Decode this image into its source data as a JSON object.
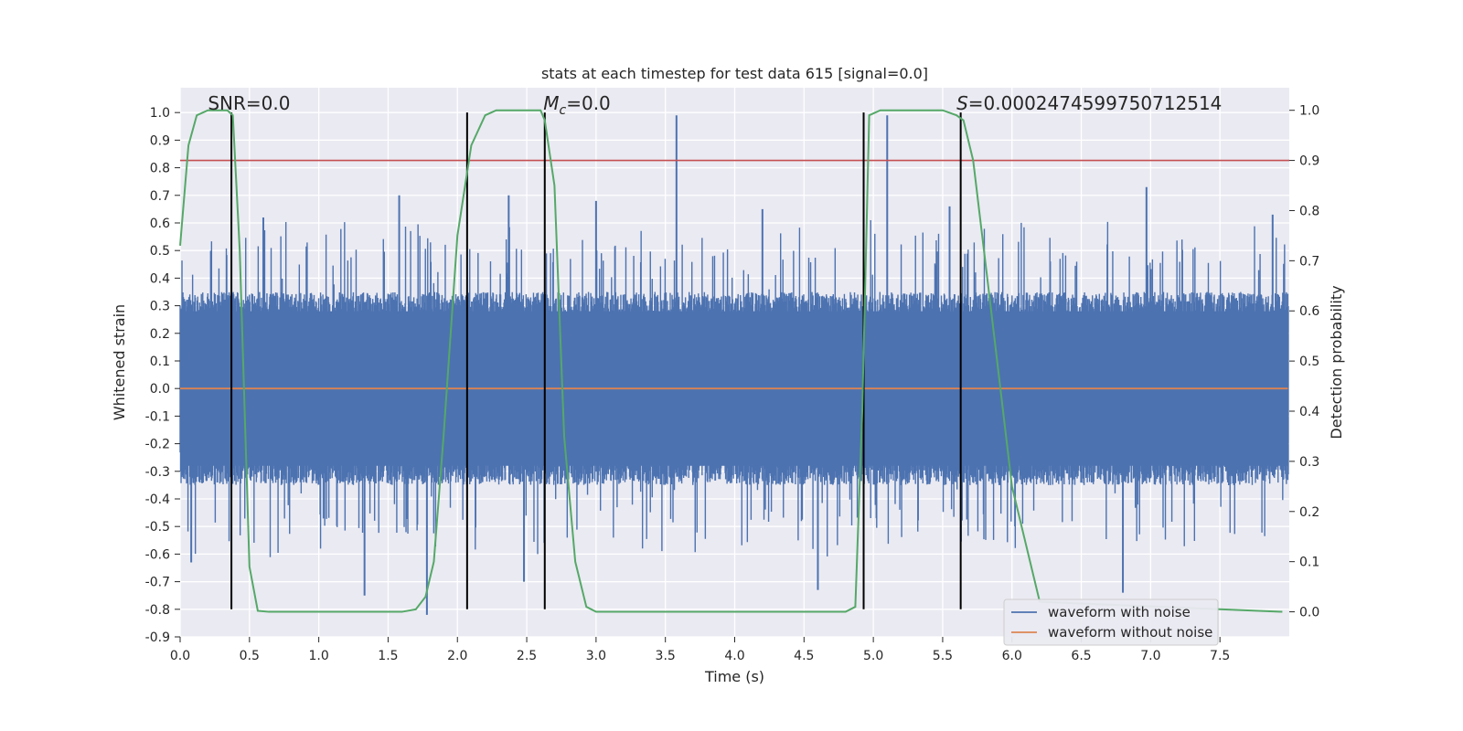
{
  "chart_data": {
    "type": "line",
    "title": "stats at each timestep for test data 615 [signal=0.0]",
    "xlabel": "Time (s)",
    "ylabel": "Whitened strain",
    "y2label": "Detection probability",
    "xlim": [
      0.0,
      8.0
    ],
    "ylim": [
      -0.9,
      1.09
    ],
    "y2lim": [
      -0.05,
      1.045
    ],
    "xticks": [
      0.0,
      0.5,
      1.0,
      1.5,
      2.0,
      2.5,
      3.0,
      3.5,
      4.0,
      4.5,
      5.0,
      5.5,
      6.0,
      6.5,
      7.0,
      7.5
    ],
    "xtick_labels": [
      "0.0",
      "0.5",
      "1.0",
      "1.5",
      "2.0",
      "2.5",
      "3.0",
      "3.5",
      "4.0",
      "4.5",
      "5.0",
      "5.5",
      "6.0",
      "6.5",
      "7.0",
      "7.5"
    ],
    "yticks": [
      -0.9,
      -0.8,
      -0.7,
      -0.6,
      -0.5,
      -0.4,
      -0.3,
      -0.2,
      -0.1,
      0.0,
      0.1,
      0.2,
      0.3,
      0.4,
      0.5,
      0.6,
      0.7,
      0.8,
      0.9,
      1.0
    ],
    "ytick_labels": [
      "-0.9",
      "-0.8",
      "-0.7",
      "-0.6",
      "-0.5",
      "-0.4",
      "-0.3",
      "-0.2",
      "-0.1",
      "0.0",
      "0.1",
      "0.2",
      "0.3",
      "0.4",
      "0.5",
      "0.6",
      "0.7",
      "0.8",
      "0.9",
      "1.0"
    ],
    "y2ticks": [
      0.0,
      0.1,
      0.2,
      0.3,
      0.4,
      0.5,
      0.6,
      0.7,
      0.8,
      0.9,
      1.0
    ],
    "y2tick_labels": [
      "0.0",
      "0.1",
      "0.2",
      "0.3",
      "0.4",
      "0.5",
      "0.6",
      "0.7",
      "0.8",
      "0.9",
      "1.0"
    ],
    "annotations": [
      {
        "text": "SNR=0.0",
        "x": 0.2,
        "y": 1.01
      },
      {
        "text": "M",
        "sub": "c",
        "suffix": "=0.0",
        "x": 2.62,
        "y": 1.01
      },
      {
        "text": "S",
        "suffix": "=0.0002474599750712514",
        "x": 5.6,
        "y": 1.01
      }
    ],
    "series": [
      {
        "name": "waveform with noise",
        "color": "#4c72b0",
        "kind": "noise",
        "envelope": 0.35,
        "peaks": [
          [
            0.42,
            0.32
          ],
          [
            0.6,
            0.62
          ],
          [
            1.58,
            0.7
          ],
          [
            1.78,
            -0.82
          ],
          [
            2.37,
            0.7
          ],
          [
            3.0,
            0.68
          ],
          [
            3.58,
            0.99
          ],
          [
            4.2,
            0.65
          ],
          [
            4.6,
            -0.73
          ],
          [
            5.1,
            0.99
          ],
          [
            5.55,
            0.66
          ],
          [
            6.8,
            -0.74
          ],
          [
            6.97,
            0.73
          ],
          [
            7.88,
            0.63
          ],
          [
            1.33,
            -0.75
          ],
          [
            2.48,
            -0.7
          ],
          [
            0.08,
            -0.63
          ]
        ]
      },
      {
        "name": "waveform without noise",
        "color": "#dd8452",
        "kind": "line",
        "x": [
          0.0,
          8.0
        ],
        "values": [
          0.0,
          0.0
        ]
      },
      {
        "name": "Detection probability",
        "color": "#55a868",
        "axis": "right",
        "x": [
          0.0,
          0.06,
          0.12,
          0.2,
          0.28,
          0.34,
          0.38,
          0.43,
          0.5,
          0.56,
          0.64,
          1.6,
          1.7,
          1.77,
          1.83,
          1.9,
          2.0,
          2.1,
          2.2,
          2.28,
          2.6,
          2.63,
          2.7,
          2.77,
          2.85,
          2.93,
          3.0,
          4.8,
          4.87,
          4.92,
          4.97,
          5.05,
          5.5,
          5.6,
          5.65,
          5.72,
          5.85,
          6.0,
          6.2,
          7.95
        ],
        "values": [
          0.73,
          0.93,
          0.99,
          1.0,
          1.0,
          1.0,
          0.99,
          0.72,
          0.09,
          0.002,
          0.0,
          0.0,
          0.005,
          0.03,
          0.1,
          0.35,
          0.75,
          0.93,
          0.99,
          1.0,
          1.0,
          0.98,
          0.85,
          0.35,
          0.1,
          0.01,
          0.0,
          0.0,
          0.01,
          0.4,
          0.99,
          1.0,
          1.0,
          0.99,
          0.98,
          0.9,
          0.6,
          0.25,
          0.02,
          0.0
        ]
      },
      {
        "name": "threshold",
        "color": "#c44e52",
        "kind": "hline",
        "axis": "right",
        "value": 0.9
      }
    ],
    "vlines": [
      0.37,
      2.07,
      2.63,
      4.93,
      5.63
    ],
    "vline_range": [
      -0.8,
      1.0
    ],
    "grid": true,
    "legend": "lower-right",
    "legend_entries": [
      "waveform with noise",
      "waveform without noise"
    ]
  }
}
